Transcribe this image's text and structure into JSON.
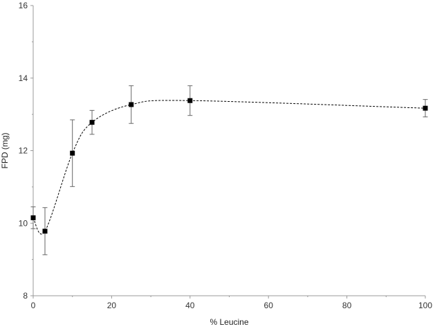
{
  "chart_data": {
    "type": "scatter",
    "title": "",
    "xlabel": "% Leucine",
    "ylabel": "FPD (mg)",
    "xlim": [
      0,
      100
    ],
    "ylim": [
      8,
      16
    ],
    "xticks": [
      0,
      20,
      40,
      60,
      80,
      100
    ],
    "yticks": [
      8,
      10,
      12,
      14,
      16
    ],
    "grid": false,
    "legend": "none",
    "line_style": "dashed",
    "marker": "square",
    "colors": {
      "series": "#000000",
      "error_bar": "#666666",
      "axis": "#999999"
    },
    "series": [
      {
        "x": [
          0,
          3,
          10,
          15,
          25,
          40,
          100
        ],
        "y": [
          10.15,
          9.78,
          11.93,
          12.78,
          13.27,
          13.38,
          13.17
        ],
        "y_err": [
          0.3,
          0.65,
          0.92,
          0.33,
          0.52,
          0.41,
          0.24
        ]
      }
    ]
  }
}
